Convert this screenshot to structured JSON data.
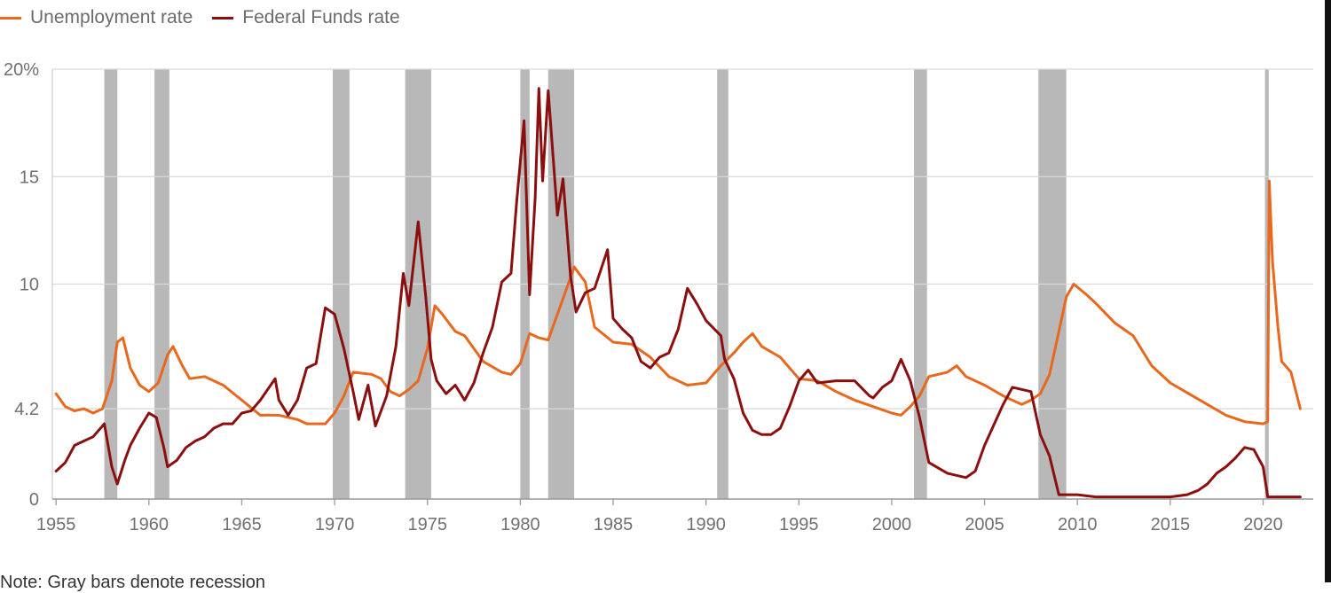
{
  "legend": [
    {
      "label": "Unemployment rate",
      "color": "#e8681e"
    },
    {
      "label": "Federal Funds rate",
      "color": "#8b0f0f"
    }
  ],
  "note": "Note: Gray bars denote recession",
  "chart_data": {
    "type": "line",
    "title": "",
    "xlabel": "",
    "ylabel": "",
    "xlim": [
      1954.8,
      2022.7
    ],
    "ylim": [
      0,
      20
    ],
    "x_ticks": [
      {
        "value": 1955,
        "label": "1955"
      },
      {
        "value": 1960,
        "label": "1960"
      },
      {
        "value": 1965,
        "label": "1965"
      },
      {
        "value": 1970,
        "label": "1970"
      },
      {
        "value": 1975,
        "label": "1975"
      },
      {
        "value": 1980,
        "label": "1980"
      },
      {
        "value": 1985,
        "label": "1985"
      },
      {
        "value": 1990,
        "label": "1990"
      },
      {
        "value": 1995,
        "label": "1995"
      },
      {
        "value": 2000,
        "label": "2000"
      },
      {
        "value": 2005,
        "label": "2005"
      },
      {
        "value": 2010,
        "label": "2010"
      },
      {
        "value": 2015,
        "label": "2015"
      },
      {
        "value": 2020,
        "label": "2020"
      }
    ],
    "y_ticks": [
      {
        "value": 0,
        "label": "0"
      },
      {
        "value": 4.2,
        "label": "4.2"
      },
      {
        "value": 10,
        "label": "10"
      },
      {
        "value": 15,
        "label": "15"
      },
      {
        "value": 20,
        "label": "20%"
      }
    ],
    "grid": true,
    "legend_position": "top-left",
    "recessions": [
      [
        1957.6,
        1958.3
      ],
      [
        1960.3,
        1961.1
      ],
      [
        1969.9,
        1970.8
      ],
      [
        1973.8,
        1975.2
      ],
      [
        1980.0,
        1980.5
      ],
      [
        1981.5,
        1982.9
      ],
      [
        1990.6,
        1991.2
      ],
      [
        2001.2,
        2001.9
      ],
      [
        2007.9,
        2009.4
      ],
      [
        2020.1,
        2020.3
      ]
    ],
    "series": [
      {
        "name": "Unemployment rate",
        "color": "#e8681e",
        "points": [
          [
            1955.0,
            4.9
          ],
          [
            1955.5,
            4.3
          ],
          [
            1956.0,
            4.1
          ],
          [
            1956.5,
            4.2
          ],
          [
            1957.0,
            4.0
          ],
          [
            1957.5,
            4.2
          ],
          [
            1958.0,
            5.5
          ],
          [
            1958.3,
            7.3
          ],
          [
            1958.6,
            7.5
          ],
          [
            1959.0,
            6.1
          ],
          [
            1959.5,
            5.3
          ],
          [
            1960.0,
            5.0
          ],
          [
            1960.5,
            5.4
          ],
          [
            1961.0,
            6.7
          ],
          [
            1961.3,
            7.1
          ],
          [
            1961.8,
            6.2
          ],
          [
            1962.2,
            5.6
          ],
          [
            1963.0,
            5.7
          ],
          [
            1964.0,
            5.3
          ],
          [
            1965.0,
            4.6
          ],
          [
            1966.0,
            3.9
          ],
          [
            1967.0,
            3.9
          ],
          [
            1968.0,
            3.7
          ],
          [
            1968.5,
            3.5
          ],
          [
            1969.0,
            3.5
          ],
          [
            1969.5,
            3.5
          ],
          [
            1970.0,
            4.0
          ],
          [
            1970.5,
            4.8
          ],
          [
            1971.0,
            5.9
          ],
          [
            1972.0,
            5.8
          ],
          [
            1972.5,
            5.6
          ],
          [
            1973.0,
            5.0
          ],
          [
            1973.5,
            4.8
          ],
          [
            1974.0,
            5.1
          ],
          [
            1974.5,
            5.5
          ],
          [
            1975.0,
            7.0
          ],
          [
            1975.4,
            9.0
          ],
          [
            1975.8,
            8.6
          ],
          [
            1976.5,
            7.8
          ],
          [
            1977.0,
            7.6
          ],
          [
            1978.0,
            6.4
          ],
          [
            1979.0,
            5.9
          ],
          [
            1979.5,
            5.8
          ],
          [
            1980.0,
            6.3
          ],
          [
            1980.5,
            7.7
          ],
          [
            1981.0,
            7.5
          ],
          [
            1981.5,
            7.4
          ],
          [
            1982.0,
            8.6
          ],
          [
            1982.5,
            9.8
          ],
          [
            1982.9,
            10.8
          ],
          [
            1983.5,
            10.1
          ],
          [
            1984.0,
            8.0
          ],
          [
            1985.0,
            7.3
          ],
          [
            1986.0,
            7.2
          ],
          [
            1987.0,
            6.6
          ],
          [
            1988.0,
            5.7
          ],
          [
            1989.0,
            5.3
          ],
          [
            1990.0,
            5.4
          ],
          [
            1990.8,
            6.2
          ],
          [
            1991.5,
            6.8
          ],
          [
            1992.0,
            7.3
          ],
          [
            1992.5,
            7.7
          ],
          [
            1993.0,
            7.1
          ],
          [
            1994.0,
            6.6
          ],
          [
            1995.0,
            5.6
          ],
          [
            1996.0,
            5.5
          ],
          [
            1997.0,
            5.0
          ],
          [
            1998.0,
            4.6
          ],
          [
            1999.0,
            4.3
          ],
          [
            2000.0,
            4.0
          ],
          [
            2000.5,
            3.9
          ],
          [
            2001.0,
            4.3
          ],
          [
            2001.5,
            4.8
          ],
          [
            2002.0,
            5.7
          ],
          [
            2003.0,
            5.9
          ],
          [
            2003.5,
            6.2
          ],
          [
            2004.0,
            5.7
          ],
          [
            2005.0,
            5.3
          ],
          [
            2006.0,
            4.8
          ],
          [
            2007.0,
            4.4
          ],
          [
            2007.5,
            4.6
          ],
          [
            2008.0,
            4.9
          ],
          [
            2008.5,
            5.8
          ],
          [
            2009.0,
            7.8
          ],
          [
            2009.4,
            9.4
          ],
          [
            2009.8,
            10.0
          ],
          [
            2010.5,
            9.5
          ],
          [
            2011.0,
            9.1
          ],
          [
            2012.0,
            8.2
          ],
          [
            2013.0,
            7.6
          ],
          [
            2014.0,
            6.2
          ],
          [
            2015.0,
            5.4
          ],
          [
            2016.0,
            4.9
          ],
          [
            2017.0,
            4.4
          ],
          [
            2018.0,
            3.9
          ],
          [
            2019.0,
            3.6
          ],
          [
            2020.0,
            3.5
          ],
          [
            2020.25,
            3.6
          ],
          [
            2020.33,
            14.8
          ],
          [
            2020.5,
            11.1
          ],
          [
            2020.8,
            8.0
          ],
          [
            2021.0,
            6.4
          ],
          [
            2021.5,
            5.9
          ],
          [
            2022.0,
            4.2
          ]
        ]
      },
      {
        "name": "Federal Funds rate",
        "color": "#8b0f0f",
        "points": [
          [
            1955.0,
            1.3
          ],
          [
            1955.5,
            1.7
          ],
          [
            1956.0,
            2.5
          ],
          [
            1956.5,
            2.7
          ],
          [
            1957.0,
            2.9
          ],
          [
            1957.6,
            3.5
          ],
          [
            1958.0,
            1.5
          ],
          [
            1958.3,
            0.7
          ],
          [
            1958.7,
            1.8
          ],
          [
            1959.0,
            2.5
          ],
          [
            1959.5,
            3.3
          ],
          [
            1960.0,
            4.0
          ],
          [
            1960.4,
            3.8
          ],
          [
            1960.8,
            2.4
          ],
          [
            1961.0,
            1.5
          ],
          [
            1961.5,
            1.8
          ],
          [
            1962.0,
            2.4
          ],
          [
            1962.5,
            2.7
          ],
          [
            1963.0,
            2.9
          ],
          [
            1963.5,
            3.3
          ],
          [
            1964.0,
            3.5
          ],
          [
            1964.5,
            3.5
          ],
          [
            1965.0,
            4.0
          ],
          [
            1965.5,
            4.1
          ],
          [
            1966.0,
            4.6
          ],
          [
            1966.8,
            5.6
          ],
          [
            1967.0,
            4.6
          ],
          [
            1967.5,
            3.9
          ],
          [
            1968.0,
            4.6
          ],
          [
            1968.5,
            6.1
          ],
          [
            1969.0,
            6.3
          ],
          [
            1969.5,
            8.9
          ],
          [
            1970.0,
            8.6
          ],
          [
            1970.5,
            7.0
          ],
          [
            1971.0,
            5.0
          ],
          [
            1971.3,
            3.7
          ],
          [
            1971.8,
            5.3
          ],
          [
            1972.2,
            3.4
          ],
          [
            1972.8,
            4.8
          ],
          [
            1973.3,
            7.1
          ],
          [
            1973.7,
            10.5
          ],
          [
            1974.0,
            9.0
          ],
          [
            1974.5,
            12.9
          ],
          [
            1974.9,
            9.5
          ],
          [
            1975.2,
            6.5
          ],
          [
            1975.5,
            5.5
          ],
          [
            1976.0,
            4.9
          ],
          [
            1976.5,
            5.3
          ],
          [
            1977.0,
            4.6
          ],
          [
            1977.5,
            5.4
          ],
          [
            1978.0,
            6.8
          ],
          [
            1978.5,
            8.0
          ],
          [
            1979.0,
            10.1
          ],
          [
            1979.5,
            10.5
          ],
          [
            1979.8,
            13.8
          ],
          [
            1980.2,
            17.6
          ],
          [
            1980.5,
            9.5
          ],
          [
            1980.8,
            14.0
          ],
          [
            1981.0,
            19.1
          ],
          [
            1981.2,
            14.8
          ],
          [
            1981.5,
            19.0
          ],
          [
            1982.0,
            13.2
          ],
          [
            1982.3,
            14.9
          ],
          [
            1982.7,
            10.4
          ],
          [
            1983.0,
            8.7
          ],
          [
            1983.5,
            9.6
          ],
          [
            1984.0,
            9.8
          ],
          [
            1984.7,
            11.6
          ],
          [
            1985.0,
            8.4
          ],
          [
            1985.5,
            7.9
          ],
          [
            1986.0,
            7.5
          ],
          [
            1986.5,
            6.4
          ],
          [
            1987.0,
            6.1
          ],
          [
            1987.5,
            6.6
          ],
          [
            1988.0,
            6.8
          ],
          [
            1988.5,
            7.9
          ],
          [
            1989.0,
            9.8
          ],
          [
            1989.5,
            9.1
          ],
          [
            1990.0,
            8.3
          ],
          [
            1990.8,
            7.6
          ],
          [
            1991.0,
            6.5
          ],
          [
            1991.5,
            5.6
          ],
          [
            1992.0,
            4.0
          ],
          [
            1992.5,
            3.2
          ],
          [
            1993.0,
            3.0
          ],
          [
            1993.5,
            3.0
          ],
          [
            1994.0,
            3.3
          ],
          [
            1994.5,
            4.3
          ],
          [
            1995.0,
            5.5
          ],
          [
            1995.5,
            6.0
          ],
          [
            1996.0,
            5.4
          ],
          [
            1997.0,
            5.5
          ],
          [
            1998.0,
            5.5
          ],
          [
            1998.8,
            4.8
          ],
          [
            1999.0,
            4.7
          ],
          [
            1999.5,
            5.2
          ],
          [
            2000.0,
            5.5
          ],
          [
            2000.5,
            6.5
          ],
          [
            2001.0,
            5.5
          ],
          [
            2001.5,
            3.8
          ],
          [
            2002.0,
            1.7
          ],
          [
            2003.0,
            1.2
          ],
          [
            2004.0,
            1.0
          ],
          [
            2004.5,
            1.3
          ],
          [
            2005.0,
            2.5
          ],
          [
            2006.0,
            4.4
          ],
          [
            2006.5,
            5.2
          ],
          [
            2007.5,
            5.0
          ],
          [
            2008.0,
            3.0
          ],
          [
            2008.5,
            2.0
          ],
          [
            2009.0,
            0.2
          ],
          [
            2010.0,
            0.2
          ],
          [
            2011.0,
            0.1
          ],
          [
            2013.0,
            0.1
          ],
          [
            2015.0,
            0.1
          ],
          [
            2015.9,
            0.2
          ],
          [
            2016.5,
            0.4
          ],
          [
            2017.0,
            0.7
          ],
          [
            2017.5,
            1.2
          ],
          [
            2018.0,
            1.5
          ],
          [
            2018.5,
            1.9
          ],
          [
            2019.0,
            2.4
          ],
          [
            2019.5,
            2.3
          ],
          [
            2020.0,
            1.5
          ],
          [
            2020.25,
            0.1
          ],
          [
            2022.0,
            0.1
          ]
        ]
      }
    ]
  }
}
